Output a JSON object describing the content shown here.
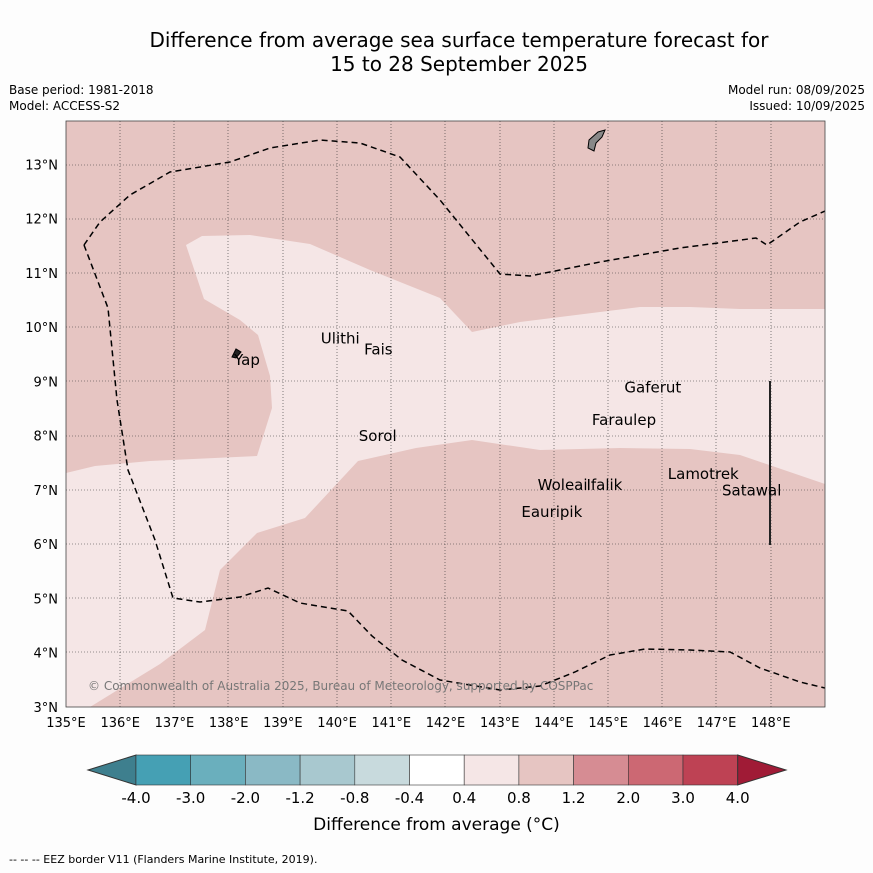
{
  "title": {
    "line1": "Difference from average sea surface temperature forecast for",
    "line2": "15 to 28 September 2025"
  },
  "meta": {
    "base_period": "Base period: 1981-2018",
    "model": "Model: ACCESS-S2",
    "model_run": "Model run: 08/09/2025",
    "issued": "Issued: 10/09/2025"
  },
  "map": {
    "lon_range": [
      135,
      149
    ],
    "lat_range": [
      3,
      13.8
    ],
    "lon_ticks": [
      "135°E",
      "136°E",
      "137°E",
      "138°E",
      "139°E",
      "140°E",
      "141°E",
      "142°E",
      "143°E",
      "144°E",
      "145°E",
      "146°E",
      "147°E",
      "148°E"
    ],
    "lat_ticks": [
      "3°N",
      "4°N",
      "5°N",
      "6°N",
      "7°N",
      "8°N",
      "9°N",
      "10°N",
      "11°N",
      "12°N",
      "13°N"
    ],
    "copyright": "© Commonwealth of Australia 2025, Bureau of Meteorology, supported by COSPPac",
    "places": [
      {
        "name": "Ulithi",
        "lon": 139.7,
        "lat": 9.7
      },
      {
        "name": "Fais",
        "lon": 140.5,
        "lat": 9.5
      },
      {
        "name": "Yap",
        "lon": 138.1,
        "lat": 9.3
      },
      {
        "name": "Gaferut",
        "lon": 145.3,
        "lat": 8.8
      },
      {
        "name": "Faraulep",
        "lon": 144.7,
        "lat": 8.2
      },
      {
        "name": "Sorol",
        "lon": 140.4,
        "lat": 7.9
      },
      {
        "name": "Woleai",
        "lon": 143.7,
        "lat": 7.0
      },
      {
        "name": "Ifalik",
        "lon": 144.6,
        "lat": 7.0
      },
      {
        "name": "Lamotrek",
        "lon": 146.1,
        "lat": 7.2
      },
      {
        "name": "Satawal",
        "lon": 147.1,
        "lat": 6.9
      },
      {
        "name": "Eauripik",
        "lon": 143.4,
        "lat": 6.5
      }
    ]
  },
  "colorbar": {
    "ticks": [
      "-4.0",
      "-3.0",
      "-2.0",
      "-1.2",
      "-0.8",
      "-0.4",
      "0.4",
      "0.8",
      "1.2",
      "2.0",
      "3.0",
      "4.0"
    ],
    "colors": [
      "#3e7f8e",
      "#45a0b4",
      "#6aafbd",
      "#8ab9c5",
      "#a8c8cf",
      "#c8dadd",
      "#ffffff",
      "#f5e6e6",
      "#e6c5c2",
      "#d68c93",
      "#cc6873",
      "#be4254",
      "#a01b36"
    ],
    "label": "Difference from average (°C)"
  },
  "legend_colors": {
    "band_0.4_0.8": "#f5e6e6",
    "band_0.8_1.2": "#e6c5c2",
    "land": "#888888"
  },
  "footer": "-- -- -- EEZ border V11 (Flanders Marine Institute, 2019)."
}
